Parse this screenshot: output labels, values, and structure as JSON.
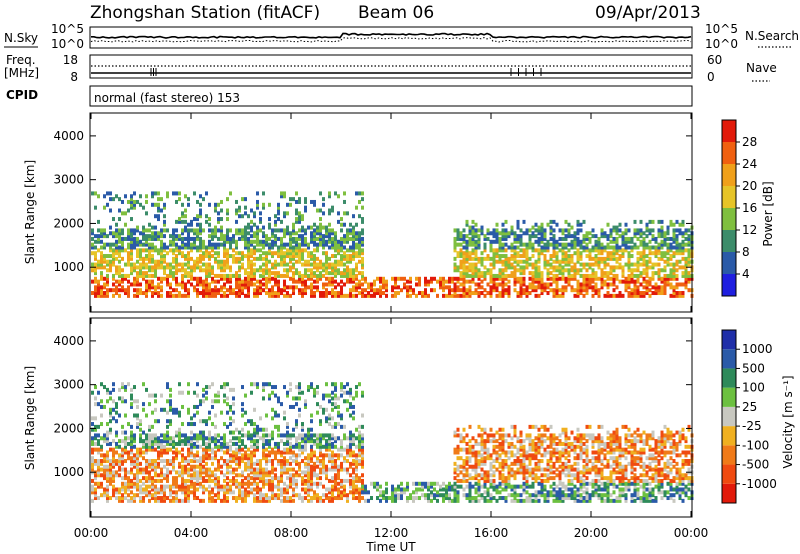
{
  "header": {
    "station": "Zhongshan Station (fitACF)",
    "beam": "Beam 06",
    "date": "09/Apr/2013"
  },
  "panels": {
    "sky": {
      "left_label": "N.Sky",
      "left_ticks": [
        "10^5",
        "10^0"
      ],
      "right_label": "N.Search",
      "right_ticks": [
        "10^5",
        "10^0"
      ]
    },
    "freq": {
      "left_label_1": "Freq.",
      "left_label_2": "[MHz]",
      "left_ticks": [
        "18",
        "8"
      ],
      "right_label": "Nave",
      "right_ticks": [
        "60",
        "0"
      ]
    },
    "cpid": {
      "label": "CPID",
      "mode": "normal (fast stereo) 153"
    }
  },
  "colors": {
    "power": [
      "#1f1fe0",
      "#2a5aa8",
      "#3c8c6a",
      "#7fbf3f",
      "#e6c428",
      "#f0a01a",
      "#f06010",
      "#e21a0a"
    ],
    "velocity": [
      "#e21a0a",
      "#f04a10",
      "#f07a18",
      "#f0b020",
      "#c8c8c0",
      "#6cc040",
      "#2e8a5a",
      "#2a5aa8",
      "#1f2ea8"
    ]
  },
  "chart_data": [
    {
      "type": "heatmap",
      "name": "power",
      "ylabel": "Slant Range [km]",
      "ylim": [
        0,
        4500
      ],
      "yticks": [
        "1000",
        "2000",
        "3000",
        "4000"
      ],
      "xlim": [
        0,
        24
      ],
      "xticks": [
        "00:00",
        "04:00",
        "08:00",
        "12:00",
        "16:00",
        "20:00",
        "00:00"
      ],
      "colorbar": {
        "label": "Power [dB]",
        "ticks": [
          "4",
          "8",
          "12",
          "16",
          "20",
          "24",
          "28"
        ]
      },
      "echo_regions": [
        {
          "t": [
            0.0,
            10.8
          ],
          "r": [
            300,
            2700
          ]
        },
        {
          "t": [
            10.8,
            14.5
          ],
          "r": [
            300,
            700
          ]
        },
        {
          "t": [
            14.5,
            24.0
          ],
          "r": [
            300,
            2000
          ]
        }
      ]
    },
    {
      "type": "heatmap",
      "name": "velocity",
      "ylabel": "Slant Range [km]",
      "ylim": [
        0,
        4500
      ],
      "yticks": [
        "1000",
        "2000",
        "3000",
        "4000"
      ],
      "xlim": [
        0,
        24
      ],
      "xticks": [
        "00:00",
        "04:00",
        "08:00",
        "12:00",
        "16:00",
        "20:00",
        "00:00"
      ],
      "xlabel": "Time UT",
      "colorbar": {
        "label": "Velocity [m s⁻¹]",
        "ticks": [
          "1000",
          "500",
          "100",
          "25",
          "-25",
          "-100",
          "-500",
          "-1000"
        ]
      },
      "echo_regions": [
        {
          "t": [
            0.0,
            10.8
          ],
          "r": [
            300,
            3000
          ]
        },
        {
          "t": [
            10.8,
            14.5
          ],
          "r": [
            300,
            700
          ]
        },
        {
          "t": [
            14.5,
            24.0
          ],
          "r": [
            300,
            2000
          ]
        }
      ]
    }
  ]
}
